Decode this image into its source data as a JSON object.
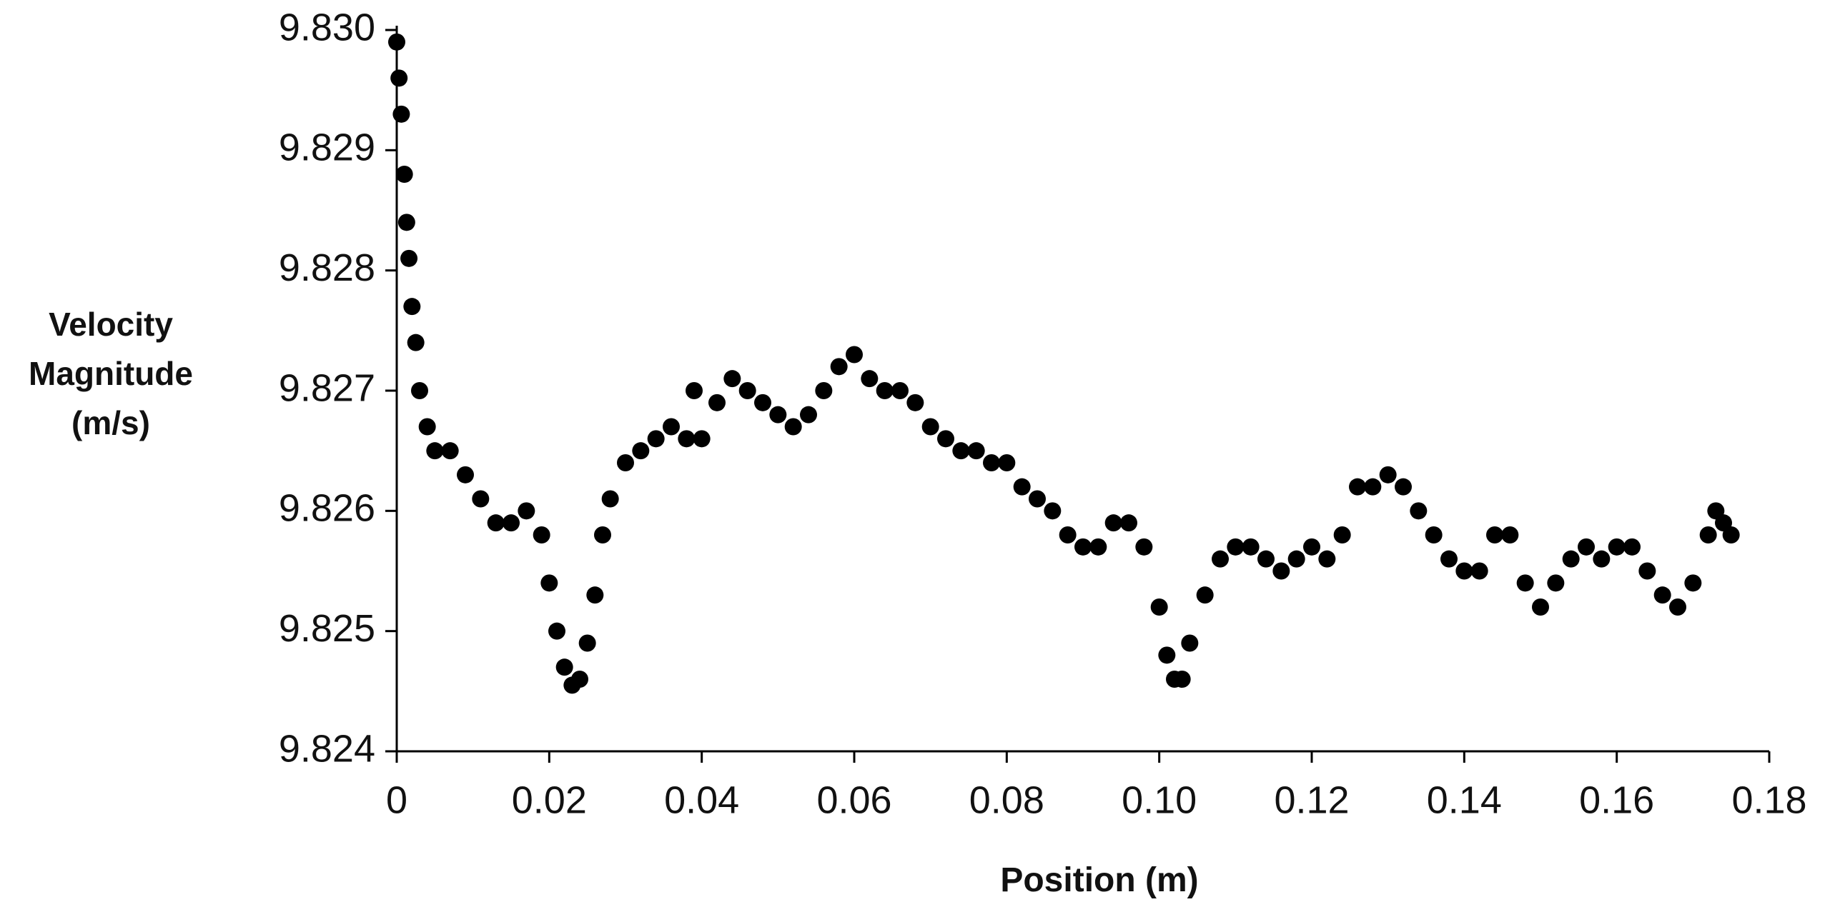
{
  "chart_data": {
    "type": "scatter",
    "xlabel": "Position (m)",
    "ylabel": "Velocity Magnitude (m/s)",
    "color": "#000000",
    "x": [
      0,
      0.0003,
      0.0006,
      0.001,
      0.0013,
      0.0016,
      0.002,
      0.0025,
      0.003,
      0.004,
      0.005,
      0.007,
      0.009,
      0.011,
      0.013,
      0.015,
      0.017,
      0.019,
      0.02,
      0.021,
      0.022,
      0.023,
      0.024,
      0.025,
      0.026,
      0.027,
      0.028,
      0.03,
      0.032,
      0.034,
      0.036,
      0.038,
      0.039,
      0.04,
      0.042,
      0.044,
      0.046,
      0.048,
      0.05,
      0.052,
      0.054,
      0.056,
      0.058,
      0.06,
      0.062,
      0.064,
      0.066,
      0.068,
      0.07,
      0.072,
      0.074,
      0.076,
      0.078,
      0.08,
      0.082,
      0.084,
      0.086,
      0.088,
      0.09,
      0.092,
      0.094,
      0.096,
      0.098,
      0.1,
      0.101,
      0.102,
      0.103,
      0.104,
      0.106,
      0.108,
      0.11,
      0.112,
      0.114,
      0.116,
      0.118,
      0.12,
      0.122,
      0.124,
      0.126,
      0.128,
      0.13,
      0.132,
      0.134,
      0.136,
      0.138,
      0.14,
      0.142,
      0.144,
      0.146,
      0.148,
      0.15,
      0.152,
      0.154,
      0.156,
      0.158,
      0.16,
      0.162,
      0.164,
      0.166,
      0.168,
      0.17,
      0.172,
      0.173,
      0.174,
      0.175
    ],
    "values": [
      9.8299,
      9.8296,
      9.8293,
      9.8288,
      9.8284,
      9.8281,
      9.8277,
      9.8274,
      9.827,
      9.8267,
      9.8265,
      9.8265,
      9.8263,
      9.8261,
      9.8259,
      9.8259,
      9.826,
      9.8258,
      9.8254,
      9.825,
      9.8247,
      9.82455,
      9.8246,
      9.8249,
      9.8253,
      9.8258,
      9.8261,
      9.8264,
      9.8265,
      9.8266,
      9.8267,
      9.8266,
      9.827,
      9.8266,
      9.8269,
      9.8271,
      9.827,
      9.8269,
      9.8268,
      9.8267,
      9.8268,
      9.827,
      9.8272,
      9.8273,
      9.8271,
      9.827,
      9.827,
      9.8269,
      9.8267,
      9.8266,
      9.8265,
      9.8265,
      9.8264,
      9.8264,
      9.8262,
      9.8261,
      9.826,
      9.8258,
      9.8257,
      9.8257,
      9.8259,
      9.8259,
      9.8257,
      9.8252,
      9.8248,
      9.8246,
      9.8246,
      9.8249,
      9.8253,
      9.8256,
      9.8257,
      9.8257,
      9.8256,
      9.8255,
      9.8256,
      9.8257,
      9.8256,
      9.8258,
      9.8262,
      9.8262,
      9.8263,
      9.8262,
      9.826,
      9.8258,
      9.8256,
      9.8255,
      9.8255,
      9.8258,
      9.8258,
      9.8254,
      9.8252,
      9.8254,
      9.8256,
      9.8257,
      9.8256,
      9.8257,
      9.8257,
      9.8255,
      9.8253,
      9.8252,
      9.8254,
      9.8258,
      9.826,
      9.8259,
      9.8258
    ],
    "xlim": [
      0,
      0.18
    ],
    "xticks": [
      0,
      0.02,
      0.04,
      0.06,
      0.08,
      {
        "value": 0.1,
        "label": "0.10"
      },
      0.12,
      0.14,
      0.16,
      0.18
    ],
    "ylim": [
      9.824,
      9.83
    ],
    "yticks": [
      9.824,
      9.825,
      9.826,
      9.827,
      9.828,
      9.829,
      {
        "value": 9.83,
        "label": "9.830"
      }
    ]
  }
}
